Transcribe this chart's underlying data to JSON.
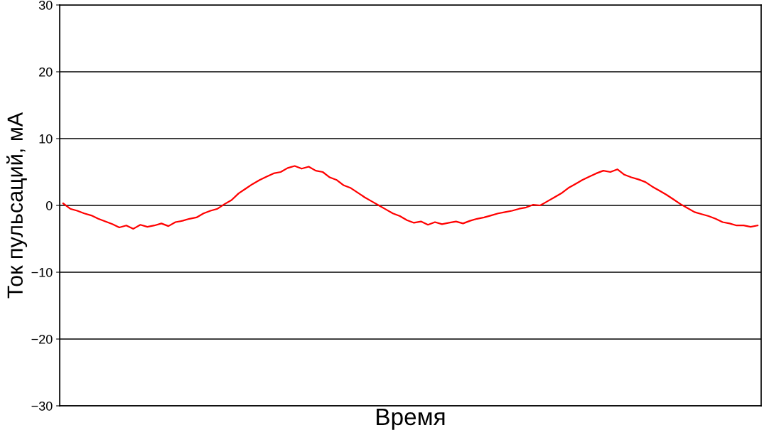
{
  "chart_data": {
    "type": "line",
    "xlabel": "Время",
    "ylabel": "Ток пульсаций, мА",
    "categories": [
      null,
      null,
      null,
      null,
      null,
      null,
      null,
      null,
      null,
      null,
      null,
      null,
      null,
      null,
      null,
      null,
      null,
      null,
      null,
      null,
      null,
      null,
      null,
      null,
      null,
      null,
      null,
      null,
      null,
      null,
      null,
      null,
      null,
      null,
      null,
      null,
      null,
      null,
      null,
      null,
      null,
      null,
      null,
      null,
      null,
      null,
      null,
      null,
      null,
      null,
      null,
      null,
      null,
      null,
      null,
      null,
      null,
      null,
      null,
      null,
      null,
      null,
      null,
      null,
      null,
      null,
      null,
      null,
      null,
      null,
      null,
      null,
      null,
      null,
      null,
      null,
      null,
      null,
      null,
      null,
      null,
      null,
      null,
      null,
      null,
      null,
      null,
      null,
      null,
      null,
      null,
      null,
      null,
      null,
      null,
      null,
      null,
      null,
      null,
      null
    ],
    "series": [
      {
        "color": "#ff0000",
        "values": [
          0.3,
          -0.5,
          -0.8,
          -1.2,
          -1.5,
          -2.0,
          -2.4,
          -2.8,
          -3.3,
          -3.0,
          -3.5,
          -2.9,
          -3.2,
          -3.0,
          -2.7,
          -3.1,
          -2.5,
          -2.3,
          -2.0,
          -1.8,
          -1.2,
          -0.8,
          -0.5,
          0.2,
          0.8,
          1.8,
          2.5,
          3.2,
          3.8,
          4.3,
          4.8,
          5.0,
          5.6,
          5.9,
          5.5,
          5.8,
          5.2,
          5.0,
          4.2,
          3.8,
          3.0,
          2.6,
          1.9,
          1.2,
          0.6,
          0.0,
          -0.6,
          -1.2,
          -1.6,
          -2.2,
          -2.6,
          -2.4,
          -2.9,
          -2.5,
          -2.8,
          -2.6,
          -2.4,
          -2.7,
          -2.3,
          -2.0,
          -1.8,
          -1.5,
          -1.2,
          -1.0,
          -0.8,
          -0.5,
          -0.3,
          0.1,
          0.0,
          0.6,
          1.2,
          1.8,
          2.6,
          3.2,
          3.8,
          4.3,
          4.8,
          5.2,
          5.0,
          5.4,
          4.6,
          4.2,
          3.9,
          3.5,
          2.8,
          2.2,
          1.6,
          0.9,
          0.2,
          -0.4,
          -1.0,
          -1.3,
          -1.6,
          -2.0,
          -2.5,
          -2.7,
          -3.0,
          -3.0,
          -3.2,
          -3.0
        ]
      }
    ],
    "ylim": [
      -30,
      30
    ],
    "yticks": [
      {
        "value": -30,
        "label": "−30"
      },
      {
        "value": -20,
        "label": "−20"
      },
      {
        "value": -10,
        "label": "−10"
      },
      0,
      10,
      20,
      30
    ],
    "grid": "y",
    "legend": false,
    "marker": "none",
    "line_style": "solid"
  }
}
